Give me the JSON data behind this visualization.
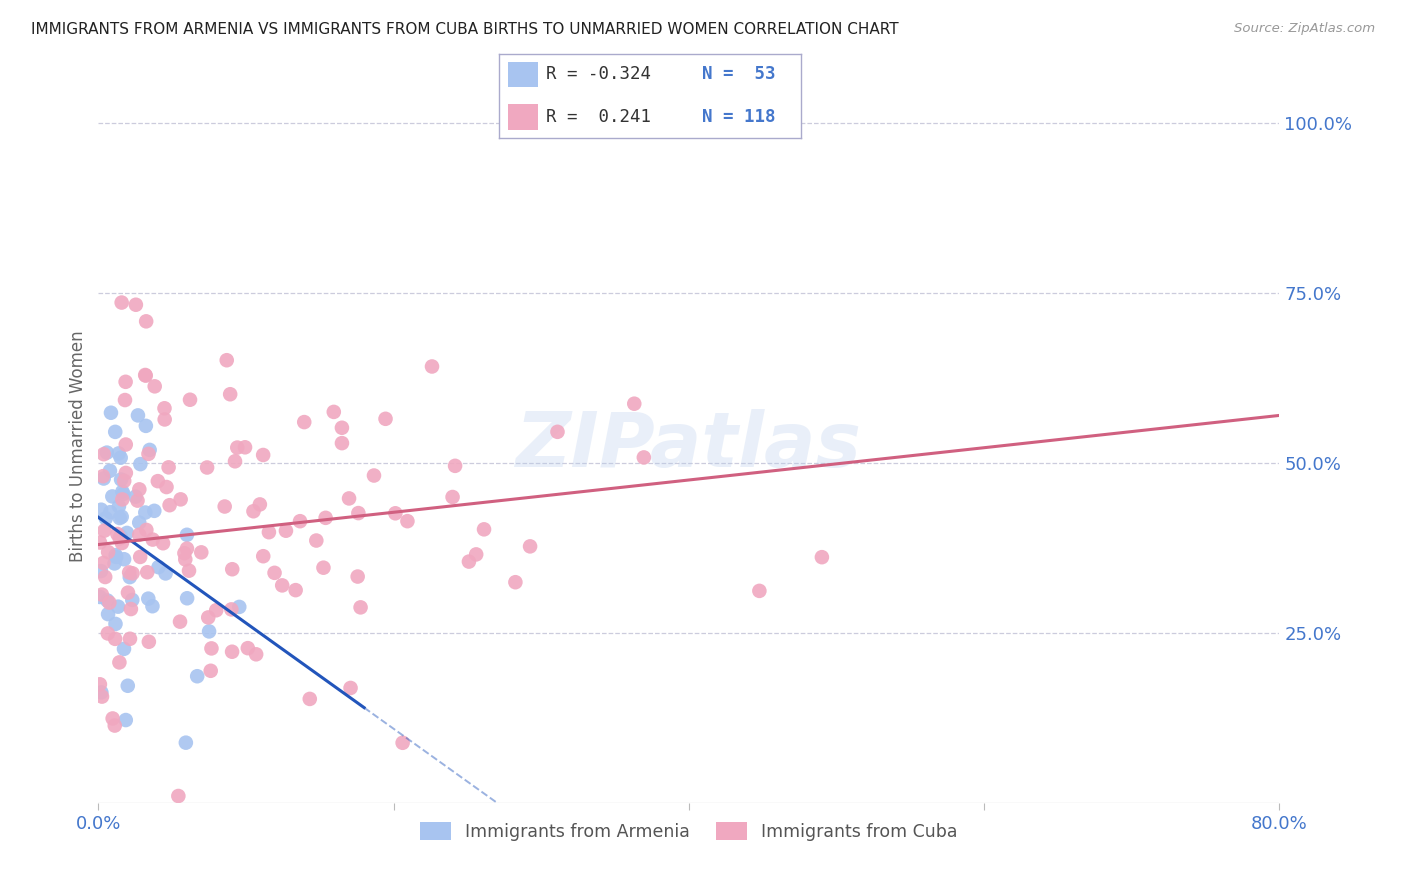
{
  "title": "IMMIGRANTS FROM ARMENIA VS IMMIGRANTS FROM CUBA BIRTHS TO UNMARRIED WOMEN CORRELATION CHART",
  "source": "Source: ZipAtlas.com",
  "ylabel": "Births to Unmarried Women",
  "ytick_labels": [
    "100.0%",
    "75.0%",
    "50.0%",
    "25.0%"
  ],
  "ytick_values": [
    1.0,
    0.75,
    0.5,
    0.25
  ],
  "xlim": [
    0.0,
    0.8
  ],
  "ylim": [
    0.0,
    1.05
  ],
  "armenia_color": "#a8c4f0",
  "cuba_color": "#f0a8c0",
  "armenia_line_color": "#2255bb",
  "cuba_line_color": "#d06080",
  "background_color": "#ffffff",
  "grid_color": "#ccccdd",
  "watermark": "ZIPatlas",
  "armenia_r": -0.324,
  "armenia_n": 53,
  "cuba_r": 0.241,
  "cuba_n": 118,
  "title_color": "#222222",
  "axis_color": "#4477cc",
  "ylabel_color": "#666666",
  "legend_r_armenia": "R = -0.324",
  "legend_n_armenia": "N =  53",
  "legend_r_cuba": "R =  0.241",
  "legend_n_cuba": "N = 118",
  "arm_line_x0": 0.0,
  "arm_line_y0": 0.42,
  "arm_line_x1": 0.18,
  "arm_line_y1": 0.14,
  "cuba_line_x0": 0.0,
  "cuba_line_y0": 0.38,
  "cuba_line_x1": 0.8,
  "cuba_line_y1": 0.57
}
